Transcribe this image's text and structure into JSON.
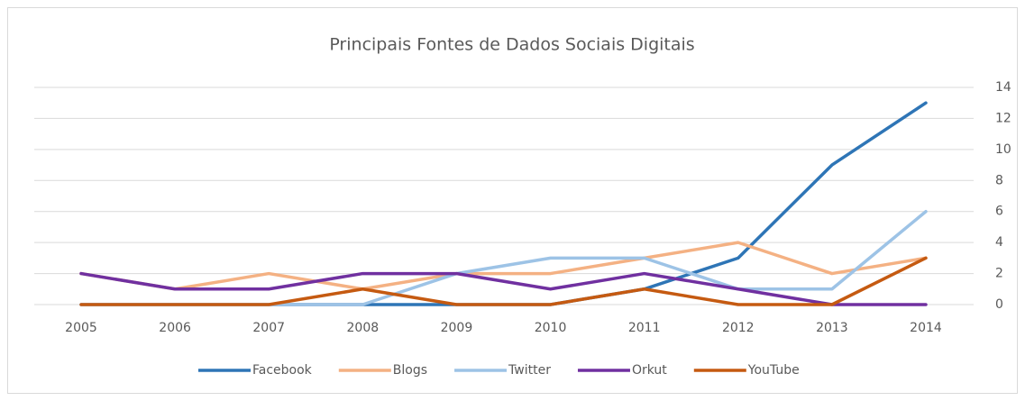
{
  "chart_data": {
    "type": "line",
    "title": "Principais Fontes de Dados Sociais Digitais",
    "categories": [
      "2005",
      "2006",
      "2007",
      "2008",
      "2009",
      "2010",
      "2011",
      "2012",
      "2013",
      "2014"
    ],
    "series": [
      {
        "name": "Facebook",
        "color": "#2e75b6",
        "values": [
          0,
          0,
          0,
          0,
          0,
          0,
          1,
          3,
          9,
          13
        ]
      },
      {
        "name": "Blogs",
        "color": "#f4b183",
        "values": [
          2,
          1,
          2,
          1,
          2,
          2,
          3,
          4,
          2,
          3
        ]
      },
      {
        "name": "Twitter",
        "color": "#9dc3e6",
        "values": [
          0,
          0,
          0,
          0,
          2,
          3,
          3,
          1,
          1,
          6
        ]
      },
      {
        "name": "Orkut",
        "color": "#7030a0",
        "values": [
          2,
          1,
          1,
          2,
          2,
          1,
          2,
          1,
          0,
          0
        ]
      },
      {
        "name": "YouTube",
        "color": "#c55a11",
        "values": [
          0,
          0,
          0,
          1,
          0,
          0,
          1,
          0,
          0,
          3
        ]
      }
    ],
    "ylim": [
      0,
      14
    ],
    "yticks": [
      0,
      2,
      4,
      6,
      8,
      10,
      12,
      14
    ],
    "grid": true,
    "legend": "bottom"
  }
}
